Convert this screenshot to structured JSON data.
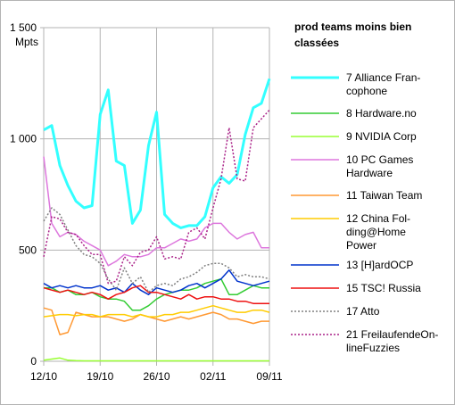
{
  "chart_data": {
    "type": "line",
    "title": "prod teams moins bien classées",
    "ylabel": "Mpts",
    "ylim": [
      0,
      1500
    ],
    "yticks": [
      0,
      500,
      1000,
      1500
    ],
    "ytick_labels": [
      "0",
      "500",
      "1 000",
      "1 500"
    ],
    "xticks": [
      "12/10",
      "19/10",
      "26/10",
      "02/11",
      "09/11"
    ],
    "grid": true,
    "legend_position": "right",
    "x": [
      "12/10",
      "13/10",
      "14/10",
      "15/10",
      "16/10",
      "17/10",
      "18/10",
      "19/10",
      "20/10",
      "21/10",
      "22/10",
      "23/10",
      "24/10",
      "25/10",
      "26/10",
      "27/10",
      "28/10",
      "29/10",
      "30/10",
      "31/10",
      "01/11",
      "02/11",
      "03/11",
      "04/11",
      "05/11",
      "06/11",
      "07/11",
      "08/11",
      "09/11"
    ],
    "series": [
      {
        "name": "7 Alliance Francophone",
        "legend_lines": [
          "7 Alliance Fran-",
          "cophone"
        ],
        "color": "#33ffff",
        "width": 3,
        "dash": "",
        "values": [
          1040,
          1060,
          880,
          790,
          720,
          690,
          700,
          1110,
          1220,
          900,
          880,
          620,
          680,
          970,
          1120,
          660,
          620,
          600,
          610,
          610,
          650,
          780,
          830,
          800,
          840,
          1020,
          1140,
          1160,
          1270
        ]
      },
      {
        "name": "8 Hardware.no",
        "legend_lines": [
          "8 Hardware.no"
        ],
        "color": "#33cc33",
        "width": 1.5,
        "dash": "",
        "values": [
          330,
          330,
          310,
          320,
          300,
          300,
          310,
          290,
          280,
          280,
          270,
          230,
          230,
          250,
          280,
          300,
          310,
          320,
          320,
          330,
          350,
          360,
          370,
          300,
          300,
          320,
          340,
          330,
          330
        ]
      },
      {
        "name": "9 NVIDIA Corp",
        "legend_lines": [
          "9 NVIDIA Corp"
        ],
        "color": "#99ff33",
        "width": 1.5,
        "dash": "",
        "values": [
          5,
          10,
          15,
          5,
          3,
          2,
          2,
          2,
          2,
          2,
          2,
          2,
          2,
          2,
          2,
          2,
          2,
          2,
          2,
          2,
          2,
          2,
          2,
          2,
          2,
          2,
          2,
          2,
          2
        ]
      },
      {
        "name": "10 PC Games Hardware",
        "legend_lines": [
          "10 PC Games",
          "Hardware"
        ],
        "color": "#dd77dd",
        "width": 1.5,
        "dash": "",
        "values": [
          920,
          620,
          560,
          580,
          570,
          540,
          520,
          500,
          430,
          450,
          480,
          470,
          470,
          480,
          510,
          510,
          530,
          550,
          540,
          550,
          600,
          620,
          620,
          580,
          550,
          570,
          580,
          510,
          510
        ]
      },
      {
        "name": "11 Taiwan Team",
        "legend_lines": [
          "11 Taiwan Team"
        ],
        "color": "#ff9933",
        "width": 1.5,
        "dash": "",
        "values": [
          240,
          230,
          120,
          130,
          220,
          210,
          200,
          200,
          200,
          190,
          180,
          190,
          210,
          200,
          190,
          180,
          190,
          200,
          190,
          200,
          210,
          220,
          210,
          190,
          190,
          180,
          170,
          180,
          180
        ]
      },
      {
        "name": "12 China Folding@Home Power",
        "legend_lines": [
          "12 China Fol-",
          "ding@Home",
          "Power"
        ],
        "color": "#ffcc00",
        "width": 1.5,
        "dash": "",
        "values": [
          200,
          205,
          210,
          210,
          205,
          210,
          210,
          200,
          210,
          210,
          210,
          200,
          210,
          200,
          200,
          210,
          210,
          220,
          220,
          230,
          240,
          250,
          240,
          230,
          220,
          220,
          230,
          230,
          220
        ]
      },
      {
        "name": "13 [H]ardOCP",
        "legend_lines": [
          "13 [H]ardOCP"
        ],
        "color": "#0033cc",
        "width": 1.5,
        "dash": "",
        "values": [
          350,
          330,
          340,
          330,
          340,
          330,
          330,
          340,
          320,
          330,
          310,
          350,
          320,
          300,
          330,
          320,
          310,
          320,
          340,
          350,
          330,
          350,
          370,
          410,
          360,
          350,
          340,
          350,
          360
        ]
      },
      {
        "name": "15 TSC! Russia",
        "legend_lines": [
          "15 TSC! Russia"
        ],
        "color": "#ee1111",
        "width": 1.5,
        "dash": "",
        "values": [
          330,
          320,
          310,
          320,
          310,
          300,
          310,
          300,
          280,
          300,
          310,
          330,
          340,
          310,
          310,
          300,
          290,
          280,
          300,
          280,
          290,
          290,
          280,
          280,
          270,
          270,
          260,
          260,
          260
        ]
      },
      {
        "name": "17 Atto",
        "legend_lines": [
          "17 Atto"
        ],
        "color": "#808080",
        "width": 1.5,
        "dash": "2,2",
        "values": [
          630,
          690,
          660,
          590,
          520,
          480,
          470,
          440,
          370,
          320,
          420,
          350,
          380,
          310,
          340,
          350,
          340,
          370,
          380,
          400,
          430,
          440,
          440,
          420,
          380,
          390,
          380,
          380,
          370
        ]
      },
      {
        "name": "21 FreilaufendeOnlineFuzzies",
        "legend_lines": [
          "21 FreilaufendeOn-",
          "lineFuzzies"
        ],
        "color": "#aa2288",
        "width": 1.5,
        "dash": "2,2",
        "values": [
          470,
          650,
          640,
          580,
          570,
          520,
          480,
          480,
          350,
          360,
          470,
          430,
          490,
          500,
          560,
          460,
          470,
          460,
          580,
          600,
          550,
          690,
          820,
          1050,
          820,
          810,
          1050,
          1090,
          1130
        ]
      }
    ]
  }
}
